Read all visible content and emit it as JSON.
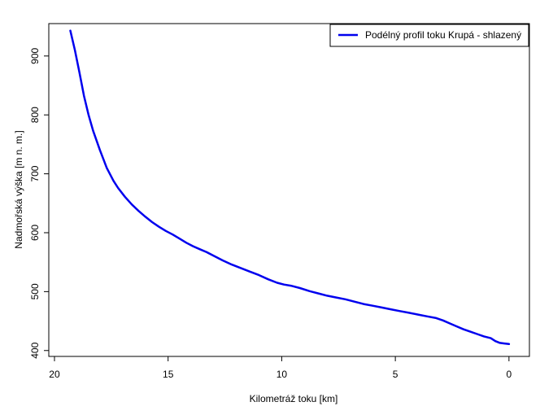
{
  "chart_data": {
    "type": "line",
    "title": "",
    "xlabel": "Kilometráž toku [km]",
    "ylabel": "Nadmořská výška [m n. m.]",
    "xlim": [
      20.25,
      -0.9
    ],
    "ylim": [
      390,
      955
    ],
    "x_ticks": [
      20,
      15,
      10,
      5,
      0
    ],
    "y_ticks": [
      400,
      500,
      600,
      700,
      800,
      900
    ],
    "legend_position": "top-right",
    "grid": false,
    "series": [
      {
        "name": "Podélný profil toku Krupá - shlazený",
        "color": "#0000ee",
        "x": [
          19.3,
          19.1,
          18.9,
          18.7,
          18.5,
          18.3,
          18.0,
          17.7,
          17.4,
          17.2,
          16.9,
          16.6,
          16.3,
          16.0,
          15.7,
          15.4,
          15.1,
          14.8,
          14.5,
          14.2,
          13.9,
          13.6,
          13.3,
          13.0,
          12.6,
          12.2,
          11.8,
          11.4,
          11.0,
          10.6,
          10.2,
          9.9,
          9.6,
          9.2,
          8.8,
          8.4,
          8.0,
          7.6,
          7.2,
          6.8,
          6.4,
          6.0,
          5.6,
          5.2,
          4.8,
          4.4,
          4.0,
          3.6,
          3.2,
          2.9,
          2.6,
          2.3,
          2.0,
          1.7,
          1.4,
          1.1,
          0.8,
          0.6,
          0.4,
          0.2,
          0.0
        ],
        "y": [
          943,
          910,
          872,
          832,
          800,
          773,
          740,
          710,
          688,
          676,
          661,
          648,
          637,
          627,
          618,
          610,
          603,
          597,
          590,
          583,
          577,
          572,
          567,
          561,
          553,
          546,
          540,
          534,
          528,
          521,
          515,
          512,
          510,
          506,
          501,
          497,
          493,
          490,
          487,
          483,
          479,
          476,
          473,
          470,
          467,
          464,
          461,
          458,
          455,
          451,
          446,
          441,
          436,
          432,
          428,
          424,
          421,
          416,
          413,
          412,
          411
        ]
      }
    ]
  }
}
